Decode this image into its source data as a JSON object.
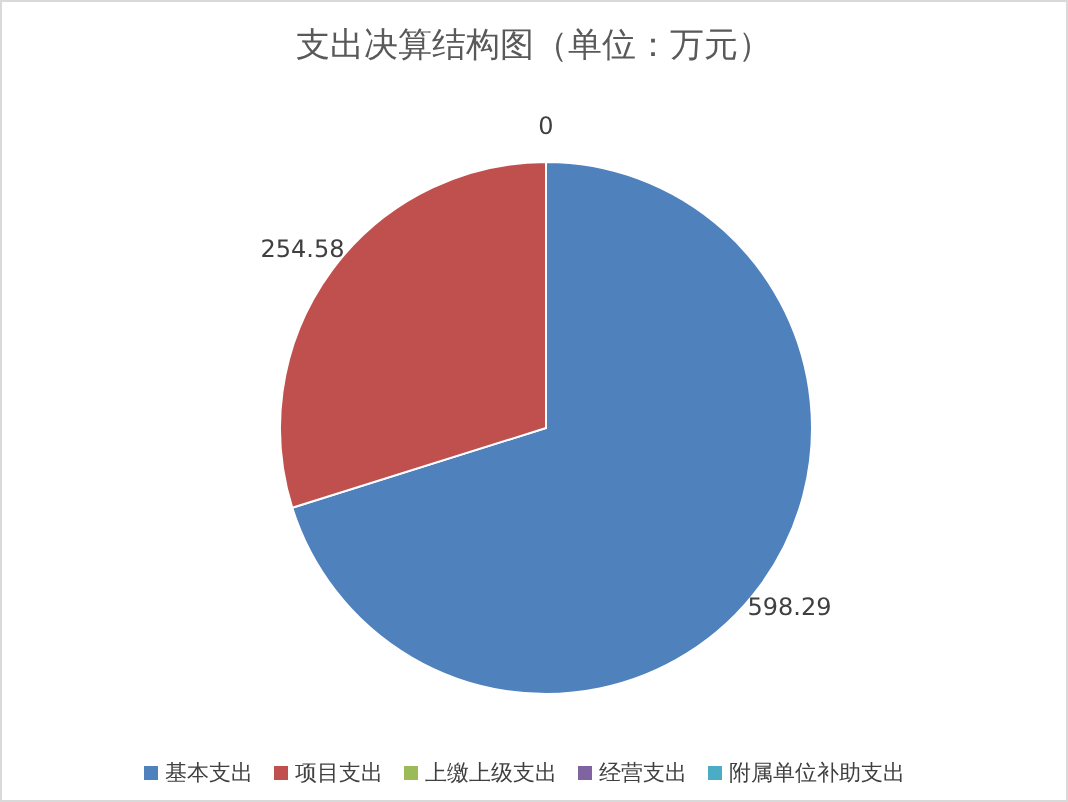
{
  "chart_data": {
    "type": "pie",
    "title": "支出决算结构图（单位：万元）",
    "categories": [
      "基本支出",
      "项目支出",
      "上缴上级支出",
      "经营支出",
      "附属单位补助支出"
    ],
    "values": [
      598.29,
      254.58,
      0,
      0,
      0
    ],
    "value_labels": [
      "598.29",
      "254.58",
      "0",
      null,
      null
    ],
    "colors": [
      "#4f81bd",
      "#c0504d",
      "#9bbb59",
      "#8064a2",
      "#4bacc6"
    ],
    "legend": "bottom"
  }
}
